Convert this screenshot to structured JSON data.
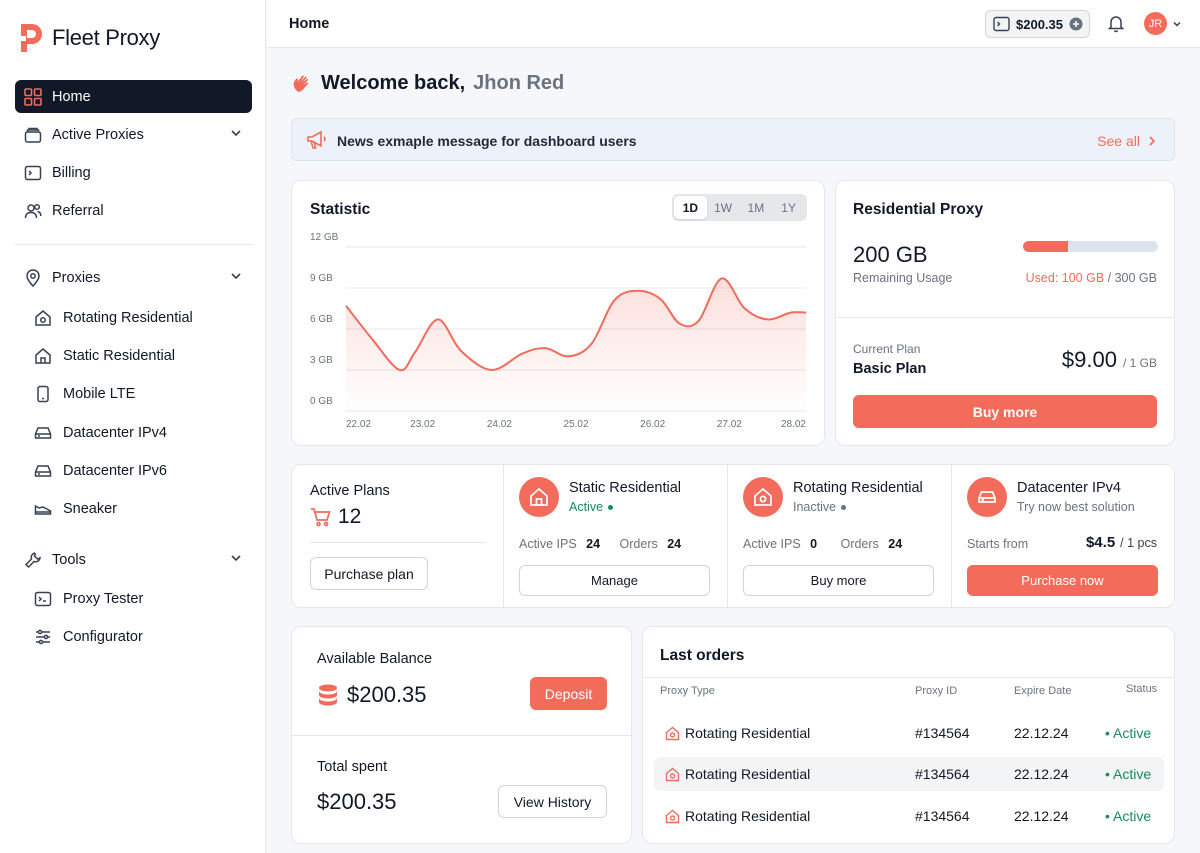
{
  "app": {
    "name": "Fleet Proxy",
    "colors": {
      "accent": "#f26b5b",
      "dark": "#111827",
      "success": "#1a8a5a"
    }
  },
  "sidebar": {
    "home": "Home",
    "active_proxies": "Active Proxies",
    "billing": "Billing",
    "referral": "Referral",
    "proxies": "Proxies",
    "proxy_items": [
      "Rotating Residential",
      "Static Residential",
      "Mobile LTE",
      "Datacenter IPv4",
      "Datacenter IPv6",
      "Sneaker"
    ],
    "tools": "Tools",
    "tool_items": [
      "Proxy Tester",
      "Configurator"
    ]
  },
  "header": {
    "title": "Home",
    "balance": "$200.35",
    "avatar_initials": "JR"
  },
  "welcome": {
    "prefix": "Welcome back,",
    "name": "Jhon Red"
  },
  "news": {
    "message": "News exmaple message for dashboard users",
    "see_all": "See all"
  },
  "statistic": {
    "title": "Statistic",
    "ranges": [
      "1D",
      "1W",
      "1M",
      "1Y"
    ],
    "selected_range": "1D"
  },
  "chart_data": {
    "type": "area",
    "x": [
      "22.02",
      "23.02",
      "24.02",
      "25.02",
      "26.02",
      "27.02",
      "28.02"
    ],
    "y_ticks": [
      "12 GB",
      "9 GB",
      "6 GB",
      "3 GB",
      "0 GB"
    ],
    "ylim": [
      0,
      12
    ],
    "series": [
      {
        "x": [
          22.0,
          22.35,
          22.7,
          22.9,
          23.2,
          23.5,
          23.9,
          24.3,
          24.6,
          24.9,
          25.2,
          25.5,
          25.8,
          26.1,
          26.35,
          26.6,
          26.9,
          27.2,
          27.5,
          27.8,
          28.0
        ],
        "y": [
          7.7,
          5.2,
          3.0,
          4.3,
          6.7,
          4.4,
          3.0,
          4.2,
          4.6,
          4.0,
          4.9,
          8.1,
          8.8,
          8.2,
          6.4,
          6.6,
          9.7,
          7.5,
          6.7,
          7.2,
          7.2
        ]
      }
    ]
  },
  "residential": {
    "title": "Residential Proxy",
    "remaining": "200 GB",
    "remaining_label": "Remaining Usage",
    "used_label": "Used: 100 GB",
    "total_label": "/ 300 GB",
    "usage_fraction": 0.333,
    "plan_label": "Current Plan",
    "plan_name": "Basic Plan",
    "price": "$9.00",
    "price_unit": "/ 1 GB",
    "buy_more": "Buy more"
  },
  "plans": {
    "active_label": "Active Plans",
    "active_count": "12",
    "purchase": "Purchase plan",
    "static": {
      "title": "Static Residential",
      "status": "Active",
      "ips_label": "Active IPS",
      "ips": "24",
      "orders_label": "Orders",
      "orders": "24",
      "button": "Manage"
    },
    "rotating": {
      "title": "Rotating Residential",
      "status": "Inactive",
      "ips_label": "Active IPS",
      "ips": "0",
      "orders_label": "Orders",
      "orders": "24",
      "button": "Buy more"
    },
    "datacenter": {
      "title": "Datacenter IPv4",
      "subtitle": "Try now best solution",
      "starts_label": "Starts from",
      "price": "$4.5",
      "unit": "/ 1 pcs",
      "button": "Purchase now"
    }
  },
  "balance": {
    "available_label": "Available Balance",
    "available": "$200.35",
    "deposit": "Deposit",
    "spent_label": "Total spent",
    "spent": "$200.35",
    "history": "View History"
  },
  "orders": {
    "title": "Last orders",
    "headers": [
      "Proxy Type",
      "Proxy ID",
      "Expire Date",
      "Status"
    ],
    "rows": [
      {
        "type": "Rotating Residential",
        "id": "#134564",
        "expire": "22.12.24",
        "status": "Active"
      },
      {
        "type": "Rotating Residential",
        "id": "#134564",
        "expire": "22.12.24",
        "status": "Active"
      },
      {
        "type": "Rotating Residential",
        "id": "#134564",
        "expire": "22.12.24",
        "status": "Active"
      }
    ]
  }
}
